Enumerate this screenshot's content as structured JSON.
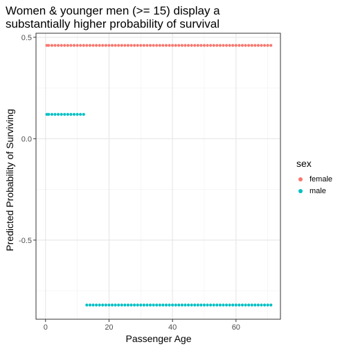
{
  "chart_data": {
    "type": "scatter",
    "title_lines": [
      "Women & younger men (>= 15) display a",
      "substantially higher probability of survival"
    ],
    "xlabel": "Passenger Age",
    "ylabel": "Predicted Probability of Surviving",
    "xlim": [
      -3,
      74
    ],
    "ylim": [
      -0.89,
      0.52
    ],
    "x_ticks": [
      0,
      20,
      40,
      60
    ],
    "x_tick_labels": [
      "0",
      "20",
      "40",
      "60"
    ],
    "y_ticks": [
      0.5,
      0.0,
      -0.5
    ],
    "y_tick_labels": [
      "0.5",
      "0.0",
      "-0.5"
    ],
    "grid": true,
    "legend": {
      "title": "sex",
      "position": "right"
    },
    "series": [
      {
        "name": "female",
        "color": "#F8766D",
        "points": [
          {
            "x_from": 0.42,
            "x_to": 71,
            "x_step": 1,
            "y": 0.46
          }
        ]
      },
      {
        "name": "male",
        "color": "#00BFC4",
        "points": [
          {
            "x_from": 0.42,
            "x_to": 12,
            "x_step": 1,
            "y": 0.12
          },
          {
            "x_from": 13,
            "x_to": 71,
            "x_step": 1,
            "y": -0.82
          }
        ]
      }
    ]
  }
}
